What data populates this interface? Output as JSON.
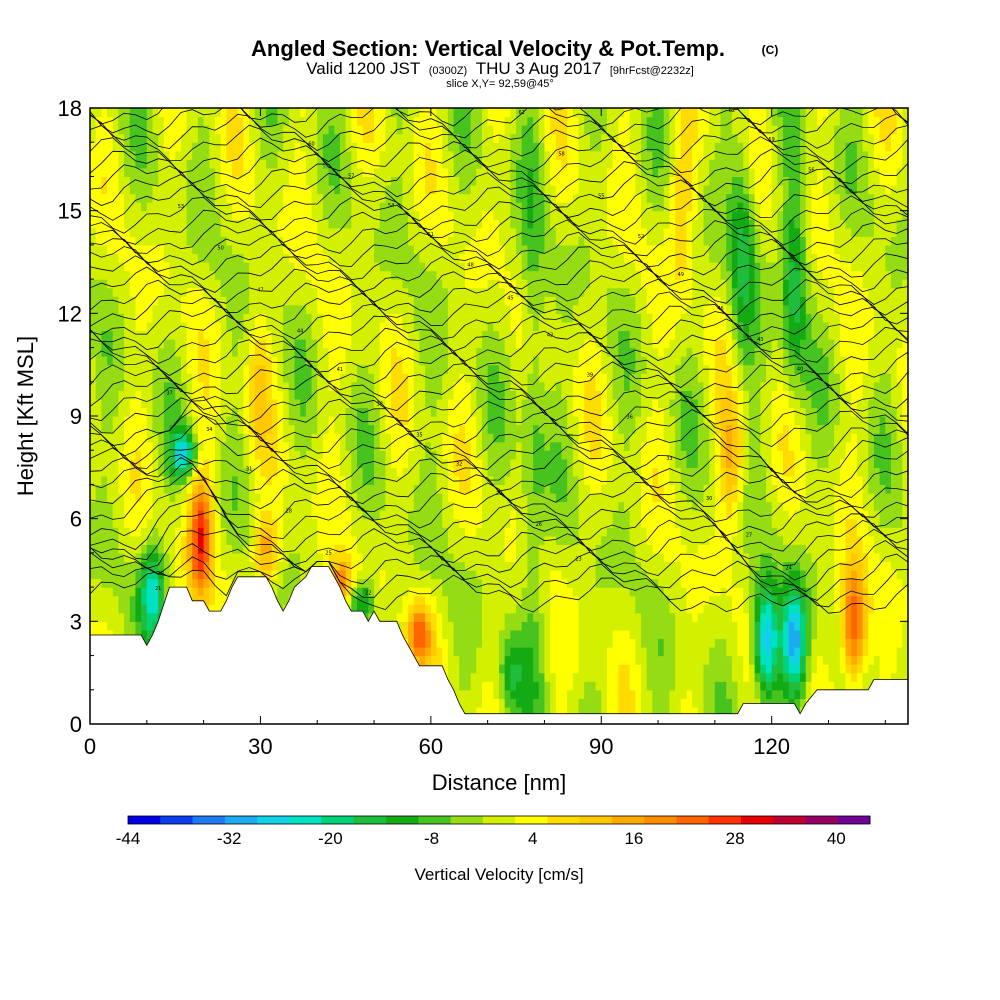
{
  "title": "Angled Section: Vertical Velocity & Pot.Temp.",
  "title_tag": "(C)",
  "subtitle": {
    "valid_prefix": "Valid 1200 JST",
    "utc": "(0300Z)",
    "date": "THU 3 Aug 2017",
    "forecast": "[9hrFcst@2232z]"
  },
  "slice_info": "slice X,Y= 92,59@45°",
  "chart_data": {
    "type": "heatmap",
    "xlabel": "Distance [nm]",
    "ylabel": "Height [Kft MSL]",
    "xlim": [
      0,
      144
    ],
    "ylim": [
      0,
      18
    ],
    "xticks": [
      "0",
      "30",
      "60",
      "90",
      "120"
    ],
    "yticks": [
      "0",
      "3",
      "6",
      "9",
      "12",
      "15",
      "18"
    ],
    "colorbar": {
      "title": "Vertical Velocity [cm/s]",
      "labels": [
        "-44",
        "-32",
        "-20",
        "-8",
        "4",
        "16",
        "28",
        "40"
      ],
      "levels": [
        -44,
        -40,
        -36,
        -32,
        -28,
        -24,
        -20,
        -16,
        -12,
        -8,
        -4,
        0,
        4,
        8,
        12,
        16,
        20,
        24,
        28,
        32,
        36,
        40,
        44
      ],
      "colors": [
        "#0000e6",
        "#0a3cf0",
        "#1e78f0",
        "#1eaaf0",
        "#10d2e6",
        "#00e1c3",
        "#00d278",
        "#1ebe3c",
        "#14aa14",
        "#46c31e",
        "#96dc14",
        "#d2f000",
        "#ffff00",
        "#ffdc00",
        "#ffc800",
        "#ffaa00",
        "#ff8c00",
        "#ff6400",
        "#ff3200",
        "#e60000",
        "#be0032",
        "#960064",
        "#6e0096"
      ]
    },
    "terrain": [
      [
        0,
        2.6
      ],
      [
        9,
        2.6
      ],
      [
        10,
        2.3
      ],
      [
        11,
        2.6
      ],
      [
        12,
        3.0
      ],
      [
        13,
        3.5
      ],
      [
        14,
        4.0
      ],
      [
        17,
        4.0
      ],
      [
        18,
        3.6
      ],
      [
        20,
        3.6
      ],
      [
        21,
        3.3
      ],
      [
        23,
        3.3
      ],
      [
        24,
        3.6
      ],
      [
        25,
        4.0
      ],
      [
        26,
        4.3
      ],
      [
        31,
        4.3
      ],
      [
        32,
        4.0
      ],
      [
        33,
        3.6
      ],
      [
        34,
        3.3
      ],
      [
        35,
        3.6
      ],
      [
        36,
        4.0
      ],
      [
        38,
        4.3
      ],
      [
        39,
        4.6
      ],
      [
        42,
        4.6
      ],
      [
        43,
        4.3
      ],
      [
        44,
        4.0
      ],
      [
        45,
        3.6
      ],
      [
        46,
        3.3
      ],
      [
        48,
        3.3
      ],
      [
        49,
        3.0
      ],
      [
        50,
        3.3
      ],
      [
        51,
        3.0
      ],
      [
        54,
        3.0
      ],
      [
        55,
        2.6
      ],
      [
        56,
        2.3
      ],
      [
        57,
        2.0
      ],
      [
        58,
        1.7
      ],
      [
        62,
        1.7
      ],
      [
        63,
        1.3
      ],
      [
        64,
        1.0
      ],
      [
        65,
        0.6
      ],
      [
        66,
        0.3
      ],
      [
        114,
        0.3
      ],
      [
        115,
        0.6
      ],
      [
        124,
        0.6
      ],
      [
        125,
        0.3
      ],
      [
        126,
        0.6
      ],
      [
        128,
        1.0
      ],
      [
        137,
        1.0
      ],
      [
        138,
        1.3
      ],
      [
        144,
        1.3
      ]
    ],
    "theta_levels": [
      21,
      22,
      23,
      24,
      25,
      26,
      27,
      28,
      29,
      30,
      31,
      32,
      33,
      34,
      35,
      36,
      37,
      38,
      39,
      40,
      41,
      42,
      43,
      44,
      45,
      46,
      47,
      48,
      49,
      50,
      51,
      52,
      53,
      54,
      55,
      56,
      57,
      58,
      59,
      60,
      61,
      62
    ],
    "updrafts": [
      {
        "x": 19.5,
        "y_bottom": 3.6,
        "y_top": 7.2,
        "w": 28
      },
      {
        "x": 134.5,
        "y_bottom": 1.2,
        "y_top": 4.5,
        "w": 30
      },
      {
        "x": 113,
        "y_bottom": 6.0,
        "y_top": 9.5,
        "w": 14
      },
      {
        "x": 44,
        "y_bottom": 3.5,
        "y_top": 4.8,
        "w": 20
      },
      {
        "x": 58,
        "y_bottom": 1.8,
        "y_top": 3.5,
        "w": 22
      },
      {
        "x": 31,
        "y_bottom": 4.2,
        "y_top": 6.0,
        "w": 18
      },
      {
        "x": 29.5,
        "y_bottom": 8.0,
        "y_top": 12.0,
        "w": 8
      },
      {
        "x": 104,
        "y_bottom": 13.0,
        "y_top": 17.5,
        "w": 10
      }
    ],
    "downdrafts": [
      {
        "x": 11,
        "y_bottom": 2.5,
        "y_top": 5.2,
        "w": -24
      },
      {
        "x": 16.5,
        "y_bottom": 7.3,
        "y_top": 8.5,
        "w": -26
      },
      {
        "x": 119,
        "y_bottom": 0.8,
        "y_top": 4.0,
        "w": -34
      },
      {
        "x": 124,
        "y_bottom": 0.8,
        "y_top": 4.0,
        "w": -30
      },
      {
        "x": 115,
        "y_bottom": 10.5,
        "y_top": 17.0,
        "w": -14
      },
      {
        "x": 124,
        "y_bottom": 10.0,
        "y_top": 16.0,
        "w": -16
      },
      {
        "x": 78,
        "y_bottom": 0.3,
        "y_top": 18.0,
        "w": -8
      },
      {
        "x": 74,
        "y_bottom": 0.3,
        "y_top": 2.5,
        "w": -12
      },
      {
        "x": 48,
        "y_bottom": 3.0,
        "y_top": 4.2,
        "w": -18
      }
    ]
  }
}
